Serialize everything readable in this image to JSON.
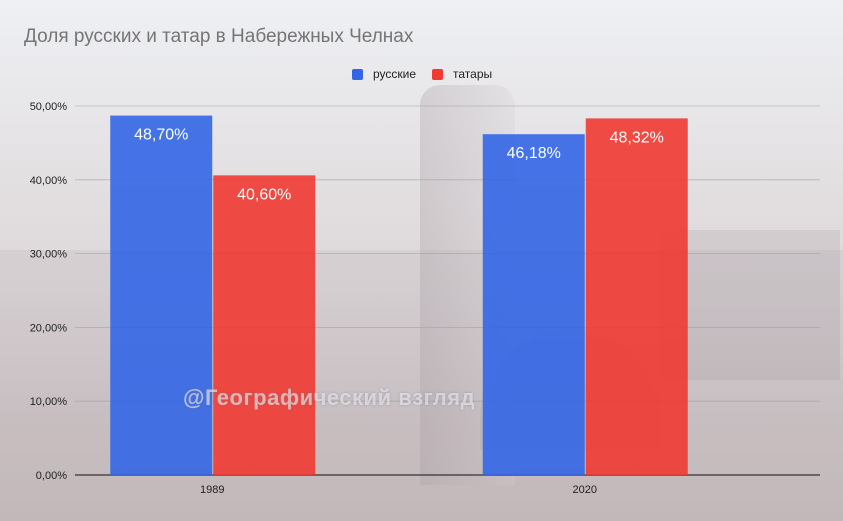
{
  "title": "Доля русских и татар в Набережных Челнах",
  "watermark": "@Географический взгляд",
  "legend": [
    {
      "label": "русские",
      "color": "#3366e6"
    },
    {
      "label": "татары",
      "color": "#f03a32"
    }
  ],
  "chart_data": {
    "type": "bar",
    "title": "Доля русских и татар в Набережных Челнах",
    "categories": [
      "1989",
      "2020"
    ],
    "series": [
      {
        "name": "русские",
        "values": [
          48.7,
          46.18
        ],
        "labels": [
          "48,70%",
          "46,18%"
        ],
        "color": "#3366e6"
      },
      {
        "name": "татары",
        "values": [
          40.6,
          48.32
        ],
        "labels": [
          "40,60%",
          "48,32%"
        ],
        "color": "#f03a32"
      }
    ],
    "ylim": [
      0,
      50
    ],
    "yticks": [
      0,
      10,
      20,
      30,
      40,
      50
    ],
    "ytick_labels": [
      "0,00%",
      "10,00%",
      "20,00%",
      "30,00%",
      "40,00%",
      "50,00%"
    ],
    "grid": true,
    "legend_position": "top"
  }
}
